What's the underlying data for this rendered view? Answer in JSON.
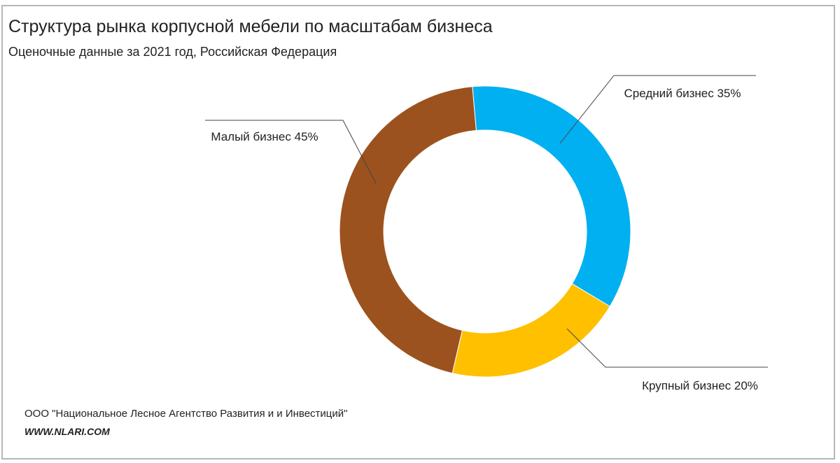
{
  "chart_data": {
    "type": "donut",
    "title": "Структура рынка корпусной мебели по масштабам бизнеса",
    "subtitle": "Оценочные данные за 2021 год, Российская Федерация",
    "categories": [
      "Средний бизнес",
      "Крупный бизнес",
      "Малый бизнес"
    ],
    "values": [
      35,
      20,
      45
    ],
    "value_labels": [
      "35%",
      "20%",
      "45%"
    ],
    "colors": [
      "#00b0f0",
      "#ffc000",
      "#9c521e"
    ],
    "source": "ООО \"Национальное Лесное Агентство Развития и и Инвестиций\"",
    "website": "WWW.NLARI.COM"
  }
}
